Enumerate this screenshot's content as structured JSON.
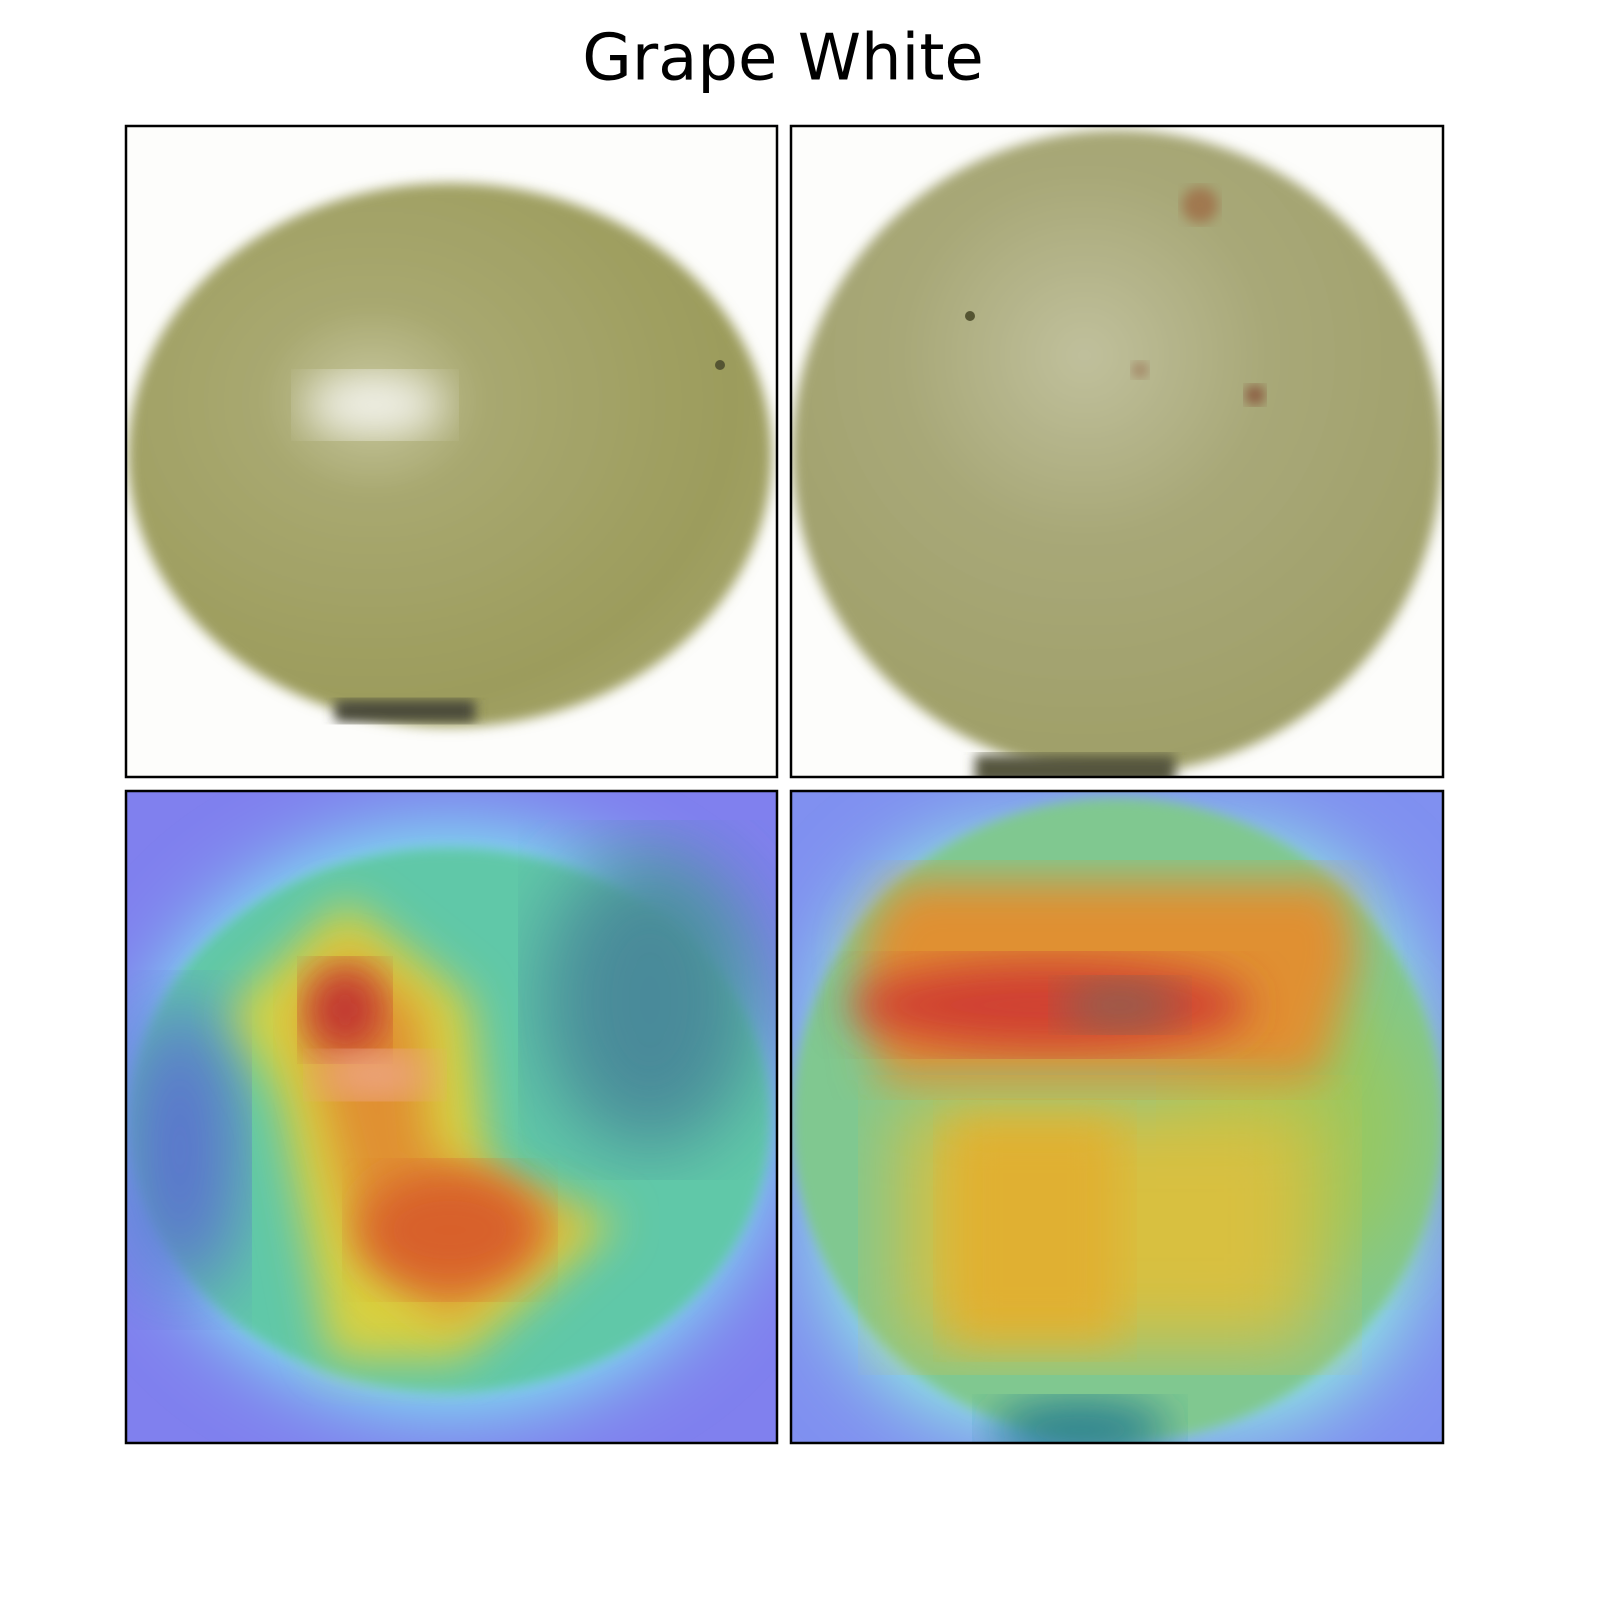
{
  "title": "Grape White"
}
